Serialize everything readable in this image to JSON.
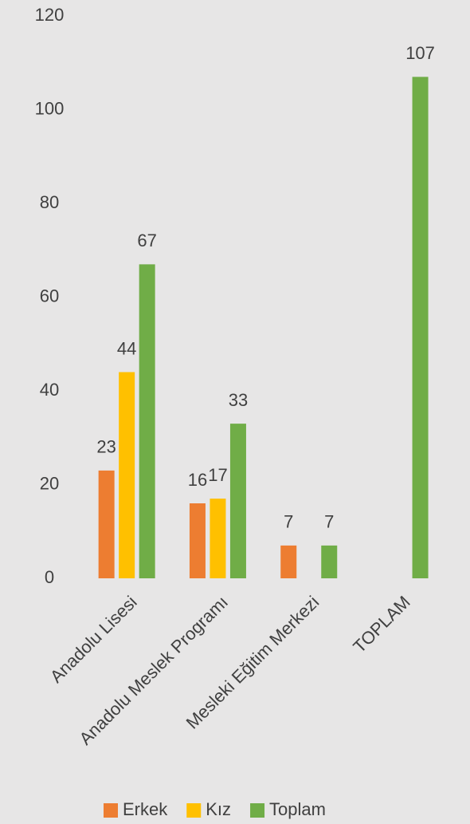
{
  "chart_data": {
    "type": "bar",
    "categories": [
      "Anadolu Lisesi",
      "Anadolu Meslek Programı",
      "Mesleki Eğitim Merkezi",
      "TOPLAM"
    ],
    "series": [
      {
        "name": "Erkek",
        "color": "#ed7d31",
        "values": [
          23,
          16,
          7,
          null
        ]
      },
      {
        "name": "Kız",
        "color": "#ffc000",
        "values": [
          44,
          17,
          null,
          null
        ]
      },
      {
        "name": "Toplam",
        "color": "#70ad47",
        "values": [
          67,
          33,
          7,
          107
        ]
      }
    ],
    "ylim": [
      0,
      120
    ],
    "yticks": [
      0,
      20,
      40,
      60,
      80,
      100,
      120
    ],
    "grid": false,
    "legend": "bottom"
  }
}
